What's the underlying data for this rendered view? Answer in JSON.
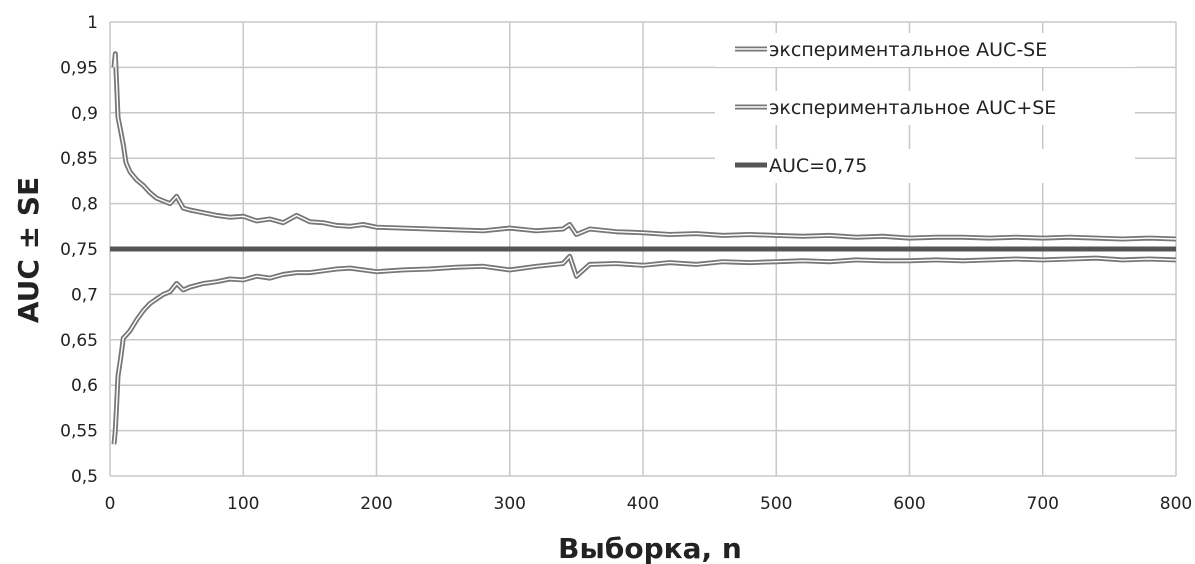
{
  "chart_data": {
    "type": "line",
    "xlabel": "Выборка,  n",
    "ylabel": "AUC ± SE",
    "xlim": [
      0,
      800
    ],
    "ylim": [
      0.5,
      1
    ],
    "x_ticks": [
      0,
      100,
      200,
      300,
      400,
      500,
      600,
      700,
      800
    ],
    "y_ticks": [
      0.5,
      0.55,
      0.6,
      0.65,
      0.7,
      0.75,
      0.8,
      0.85,
      0.9,
      0.95,
      1
    ],
    "x_tick_labels": [
      "0",
      "100",
      "200",
      "300",
      "400",
      "500",
      "600",
      "700",
      "800"
    ],
    "y_tick_labels": [
      "0,5",
      "0,55",
      "0,6",
      "0,65",
      "0,7",
      "0,75",
      "0,8",
      "0,85",
      "0,9",
      "0,95",
      "1"
    ],
    "grid": true,
    "legend_position": "top-right",
    "series": [
      {
        "name": "экспериментальное AUC-SE",
        "style": "double",
        "color": "#777777",
        "x": [
          3,
          4,
          5,
          6,
          8,
          10,
          12,
          15,
          20,
          25,
          30,
          35,
          40,
          45,
          50,
          55,
          60,
          70,
          80,
          90,
          100,
          110,
          120,
          130,
          140,
          150,
          160,
          170,
          180,
          190,
          200,
          220,
          240,
          260,
          280,
          300,
          320,
          340,
          345,
          350,
          360,
          380,
          400,
          420,
          440,
          460,
          480,
          500,
          520,
          540,
          560,
          580,
          600,
          620,
          640,
          660,
          680,
          700,
          720,
          740,
          760,
          780,
          800
        ],
        "values": [
          0.95,
          0.965,
          0.93,
          0.895,
          0.88,
          0.865,
          0.845,
          0.835,
          0.826,
          0.82,
          0.812,
          0.806,
          0.803,
          0.8,
          0.808,
          0.795,
          0.793,
          0.79,
          0.787,
          0.785,
          0.786,
          0.781,
          0.783,
          0.779,
          0.787,
          0.78,
          0.779,
          0.776,
          0.775,
          0.777,
          0.774,
          0.773,
          0.772,
          0.771,
          0.77,
          0.773,
          0.77,
          0.772,
          0.777,
          0.766,
          0.772,
          0.769,
          0.768,
          0.766,
          0.767,
          0.765,
          0.766,
          0.765,
          0.764,
          0.765,
          0.763,
          0.764,
          0.762,
          0.763,
          0.763,
          0.762,
          0.763,
          0.762,
          0.763,
          0.762,
          0.761,
          0.762,
          0.761
        ]
      },
      {
        "name": "экспериментальное AUC+SE",
        "style": "double",
        "color": "#777777",
        "x": [
          3,
          4,
          5,
          6,
          8,
          10,
          12,
          15,
          20,
          25,
          30,
          35,
          40,
          45,
          50,
          55,
          60,
          70,
          80,
          90,
          100,
          110,
          120,
          130,
          140,
          150,
          160,
          170,
          180,
          190,
          200,
          220,
          240,
          260,
          280,
          300,
          320,
          340,
          345,
          350,
          360,
          380,
          400,
          420,
          440,
          460,
          480,
          500,
          520,
          540,
          560,
          580,
          600,
          620,
          640,
          660,
          680,
          700,
          720,
          740,
          760,
          780,
          800
        ],
        "values": [
          0.535,
          0.55,
          0.58,
          0.61,
          0.63,
          0.652,
          0.655,
          0.66,
          0.672,
          0.682,
          0.69,
          0.695,
          0.7,
          0.703,
          0.712,
          0.705,
          0.708,
          0.712,
          0.714,
          0.717,
          0.716,
          0.72,
          0.718,
          0.722,
          0.724,
          0.724,
          0.726,
          0.728,
          0.729,
          0.727,
          0.725,
          0.727,
          0.728,
          0.73,
          0.731,
          0.727,
          0.731,
          0.734,
          0.742,
          0.72,
          0.733,
          0.734,
          0.732,
          0.735,
          0.733,
          0.736,
          0.735,
          0.736,
          0.737,
          0.736,
          0.738,
          0.737,
          0.737,
          0.738,
          0.737,
          0.738,
          0.739,
          0.738,
          0.739,
          0.74,
          0.738,
          0.739,
          0.738
        ]
      },
      {
        "name": "AUC=0,75",
        "style": "thick",
        "color": "#555555",
        "x": [
          0,
          800
        ],
        "values": [
          0.75,
          0.75
        ]
      }
    ]
  }
}
